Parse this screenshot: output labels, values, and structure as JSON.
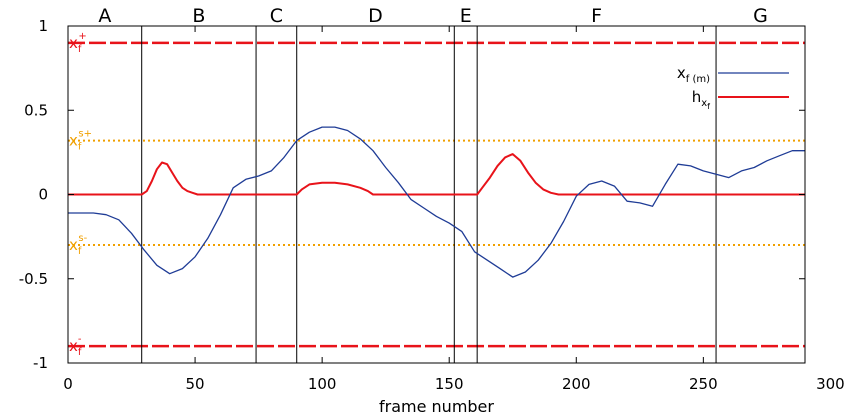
{
  "chart_data": {
    "type": "line",
    "xlabel": "frame number",
    "ylabel": "",
    "xlim": [
      0,
      290
    ],
    "ylim": [
      -1,
      1
    ],
    "xticks": [
      "0",
      "50",
      "100",
      "150",
      "200",
      "250",
      "300"
    ],
    "yticks": [
      "1",
      "0.5",
      "0",
      "-0.5",
      "-1"
    ],
    "grid": false,
    "legend_position": "top-right",
    "colors": {
      "xf": "#1f3c96",
      "hxf": "#e8131a",
      "limit": "#e8131a",
      "safety": "#f0a000",
      "frame": "#000000"
    },
    "regions": [
      {
        "label": "A",
        "start": 0,
        "end": 29
      },
      {
        "label": "B",
        "start": 29,
        "end": 74
      },
      {
        "label": "C",
        "start": 74,
        "end": 90
      },
      {
        "label": "D",
        "start": 90,
        "end": 152
      },
      {
        "label": "E",
        "start": 152,
        "end": 161
      },
      {
        "label": "F",
        "start": 161,
        "end": 255
      },
      {
        "label": "G",
        "start": 255,
        "end": 290
      }
    ],
    "reference_lines": [
      {
        "symbol": "x",
        "sub": "f",
        "sup": "+",
        "value": 0.9,
        "style": "dashed",
        "color": "#e8131a"
      },
      {
        "symbol": "x",
        "sub": "f",
        "sup": "s+",
        "value": 0.32,
        "style": "dotted",
        "color": "#f0a000"
      },
      {
        "symbol": "x",
        "sub": "f",
        "sup": "s-",
        "value": -0.3,
        "style": "dotted",
        "color": "#f0a000"
      },
      {
        "symbol": "x",
        "sub": "f",
        "sup": "-",
        "value": -0.9,
        "style": "dashed",
        "color": "#e8131a"
      }
    ],
    "series": [
      {
        "name": "x",
        "name_sub": "f (m)",
        "color": "#1f3c96",
        "x": [
          0,
          5,
          10,
          15,
          20,
          25,
          30,
          35,
          40,
          45,
          50,
          55,
          60,
          65,
          70,
          75,
          80,
          85,
          90,
          95,
          100,
          105,
          110,
          115,
          120,
          125,
          130,
          135,
          140,
          145,
          150,
          155,
          160,
          165,
          170,
          175,
          180,
          185,
          190,
          195,
          200,
          205,
          210,
          215,
          220,
          225,
          230,
          235,
          240,
          245,
          250,
          255,
          260,
          265,
          270,
          275,
          280,
          285,
          290
        ],
        "values": [
          -0.11,
          -0.11,
          -0.11,
          -0.12,
          -0.15,
          -0.23,
          -0.33,
          -0.42,
          -0.47,
          -0.44,
          -0.37,
          -0.26,
          -0.12,
          0.04,
          0.09,
          0.11,
          0.14,
          0.22,
          0.32,
          0.37,
          0.4,
          0.4,
          0.38,
          0.33,
          0.26,
          0.16,
          0.07,
          -0.03,
          -0.08,
          -0.13,
          -0.17,
          -0.22,
          -0.34,
          -0.39,
          -0.44,
          -0.49,
          -0.46,
          -0.39,
          -0.29,
          -0.16,
          -0.01,
          0.06,
          0.08,
          0.05,
          -0.04,
          -0.05,
          -0.07,
          0.06,
          0.18,
          0.17,
          0.14,
          0.12,
          0.1,
          0.14,
          0.16,
          0.2,
          0.23,
          0.26,
          0.26
        ]
      },
      {
        "name": "h",
        "name_sub": "x",
        "name_subsub": "f",
        "color": "#e8131a",
        "x": [
          0,
          29,
          31,
          33,
          35,
          37,
          39,
          41,
          43,
          45,
          47,
          49,
          51,
          90,
          92,
          95,
          100,
          105,
          110,
          115,
          118,
          120,
          161,
          163,
          166,
          169,
          172,
          175,
          178,
          181,
          184,
          187,
          190,
          193,
          290
        ],
        "values": [
          0,
          0,
          0.02,
          0.08,
          0.15,
          0.19,
          0.18,
          0.13,
          0.08,
          0.04,
          0.02,
          0.01,
          0,
          0,
          0.03,
          0.06,
          0.07,
          0.07,
          0.06,
          0.04,
          0.02,
          0,
          0,
          0.04,
          0.1,
          0.17,
          0.22,
          0.24,
          0.2,
          0.13,
          0.07,
          0.03,
          0.01,
          0,
          0
        ]
      }
    ]
  }
}
